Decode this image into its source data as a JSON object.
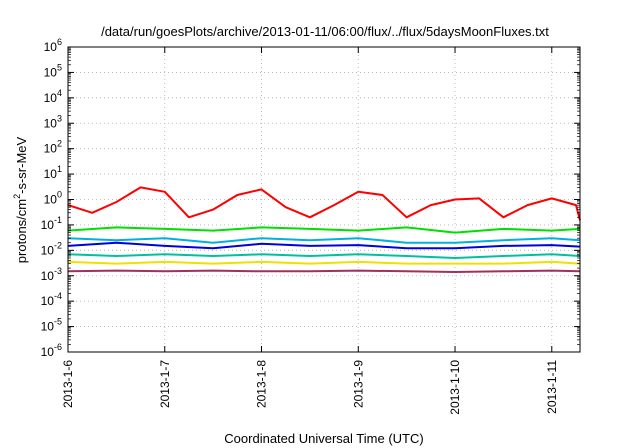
{
  "chart_data": {
    "type": "line",
    "title": "/data/run/goesPlots/archive/2013-01-11/06:00/flux/../flux/5daysMoonFluxes.txt",
    "xlabel": "Coordinated Universal Time (UTC)",
    "ylabel": {
      "prefix": "protons/cm",
      "sup": "2",
      "suffix": "-s-sr-MeV"
    },
    "y_scale": "log",
    "ylim": [
      1e-06,
      1000000.0
    ],
    "y_ticks": [
      {
        "value": 1e-06,
        "base": "10",
        "exp": "-6"
      },
      {
        "value": 1e-05,
        "base": "10",
        "exp": "-5"
      },
      {
        "value": 0.0001,
        "base": "10",
        "exp": "-4"
      },
      {
        "value": 0.001,
        "base": "10",
        "exp": "-3"
      },
      {
        "value": 0.01,
        "base": "10",
        "exp": "-2"
      },
      {
        "value": 0.1,
        "base": "10",
        "exp": "-1"
      },
      {
        "value": 1,
        "base": "10",
        "exp": "0"
      },
      {
        "value": 10,
        "base": "10",
        "exp": "1"
      },
      {
        "value": 100,
        "base": "10",
        "exp": "2"
      },
      {
        "value": 1000,
        "base": "10",
        "exp": "3"
      },
      {
        "value": 10000,
        "base": "10",
        "exp": "4"
      },
      {
        "value": 100000,
        "base": "10",
        "exp": "5"
      },
      {
        "value": 1000000,
        "base": "10",
        "exp": "6"
      }
    ],
    "xlim": [
      "2013-01-06T00:00",
      "2013-01-11T07:00"
    ],
    "x_ticks": [
      {
        "value": "2013-01-06T00:00",
        "label": "2013-1-6"
      },
      {
        "value": "2013-01-07T00:00",
        "label": "2013-1-7"
      },
      {
        "value": "2013-01-08T00:00",
        "label": "2013-1-8"
      },
      {
        "value": "2013-01-09T00:00",
        "label": "2013-1-9"
      },
      {
        "value": "2013-01-10T00:00",
        "label": "2013-1-10"
      },
      {
        "value": "2013-01-11T00:00",
        "label": "2013-1-11"
      }
    ],
    "grid": true,
    "legend": "none",
    "series": [
      {
        "color": "#ff0000",
        "x": [
          "2013-01-06T00:00",
          "2013-01-06T06:00",
          "2013-01-06T12:00",
          "2013-01-06T18:00",
          "2013-01-07T00:00",
          "2013-01-07T06:00",
          "2013-01-07T12:00",
          "2013-01-07T18:00",
          "2013-01-08T00:00",
          "2013-01-08T06:00",
          "2013-01-08T12:00",
          "2013-01-08T18:00",
          "2013-01-09T00:00",
          "2013-01-09T06:00",
          "2013-01-09T12:00",
          "2013-01-09T18:00",
          "2013-01-10T00:00",
          "2013-01-10T06:00",
          "2013-01-10T12:00",
          "2013-01-10T18:00",
          "2013-01-11T00:00",
          "2013-01-11T06:00",
          "2013-01-11T07:00"
        ],
        "y": [
          0.6,
          0.3,
          0.8,
          3,
          2,
          0.2,
          0.4,
          1.5,
          2.5,
          0.5,
          0.2,
          0.6,
          2.0,
          1.5,
          0.2,
          0.6,
          1.0,
          1.1,
          0.2,
          0.6,
          1.1,
          0.6,
          0.15
        ]
      },
      {
        "color": "#00e000",
        "x": [
          "2013-01-06T00:00",
          "2013-01-06T12:00",
          "2013-01-07T00:00",
          "2013-01-07T12:00",
          "2013-01-08T00:00",
          "2013-01-08T12:00",
          "2013-01-09T00:00",
          "2013-01-09T12:00",
          "2013-01-10T00:00",
          "2013-01-10T12:00",
          "2013-01-11T00:00",
          "2013-01-11T07:00"
        ],
        "y": [
          0.06,
          0.08,
          0.07,
          0.06,
          0.08,
          0.07,
          0.06,
          0.08,
          0.05,
          0.07,
          0.06,
          0.07
        ]
      },
      {
        "color": "#00b0e0",
        "x": [
          "2013-01-06T00:00",
          "2013-01-06T12:00",
          "2013-01-07T00:00",
          "2013-01-07T12:00",
          "2013-01-08T00:00",
          "2013-01-08T12:00",
          "2013-01-09T00:00",
          "2013-01-09T12:00",
          "2013-01-10T00:00",
          "2013-01-10T12:00",
          "2013-01-11T00:00",
          "2013-01-11T07:00"
        ],
        "y": [
          0.03,
          0.025,
          0.03,
          0.02,
          0.03,
          0.025,
          0.03,
          0.02,
          0.02,
          0.025,
          0.03,
          0.025
        ]
      },
      {
        "color": "#0000e0",
        "x": [
          "2013-01-06T00:00",
          "2013-01-06T12:00",
          "2013-01-07T00:00",
          "2013-01-07T12:00",
          "2013-01-08T00:00",
          "2013-01-08T12:00",
          "2013-01-09T00:00",
          "2013-01-09T12:00",
          "2013-01-10T00:00",
          "2013-01-10T12:00",
          "2013-01-11T00:00",
          "2013-01-11T07:00"
        ],
        "y": [
          0.015,
          0.02,
          0.015,
          0.012,
          0.018,
          0.015,
          0.016,
          0.012,
          0.012,
          0.015,
          0.016,
          0.014
        ]
      },
      {
        "color": "#00c0a0",
        "x": [
          "2013-01-06T00:00",
          "2013-01-06T12:00",
          "2013-01-07T00:00",
          "2013-01-07T12:00",
          "2013-01-08T00:00",
          "2013-01-08T12:00",
          "2013-01-09T00:00",
          "2013-01-09T12:00",
          "2013-01-10T00:00",
          "2013-01-10T12:00",
          "2013-01-11T00:00",
          "2013-01-11T07:00"
        ],
        "y": [
          0.007,
          0.006,
          0.007,
          0.006,
          0.007,
          0.006,
          0.007,
          0.006,
          0.005,
          0.006,
          0.007,
          0.006
        ]
      },
      {
        "color": "#f0e000",
        "x": [
          "2013-01-06T00:00",
          "2013-01-06T12:00",
          "2013-01-07T00:00",
          "2013-01-07T12:00",
          "2013-01-08T00:00",
          "2013-01-08T12:00",
          "2013-01-09T00:00",
          "2013-01-09T12:00",
          "2013-01-10T00:00",
          "2013-01-10T12:00",
          "2013-01-11T00:00",
          "2013-01-11T07:00"
        ],
        "y": [
          0.0035,
          0.003,
          0.0035,
          0.003,
          0.0035,
          0.003,
          0.0035,
          0.003,
          0.003,
          0.003,
          0.0035,
          0.003
        ]
      },
      {
        "color": "#a03060",
        "x": [
          "2013-01-06T00:00",
          "2013-01-06T12:00",
          "2013-01-07T00:00",
          "2013-01-07T12:00",
          "2013-01-08T00:00",
          "2013-01-08T12:00",
          "2013-01-09T00:00",
          "2013-01-09T12:00",
          "2013-01-10T00:00",
          "2013-01-10T12:00",
          "2013-01-11T00:00",
          "2013-01-11T07:00"
        ],
        "y": [
          0.0015,
          0.0016,
          0.0015,
          0.0016,
          0.0015,
          0.0015,
          0.0016,
          0.0015,
          0.0014,
          0.0015,
          0.0016,
          0.0015
        ]
      }
    ]
  }
}
